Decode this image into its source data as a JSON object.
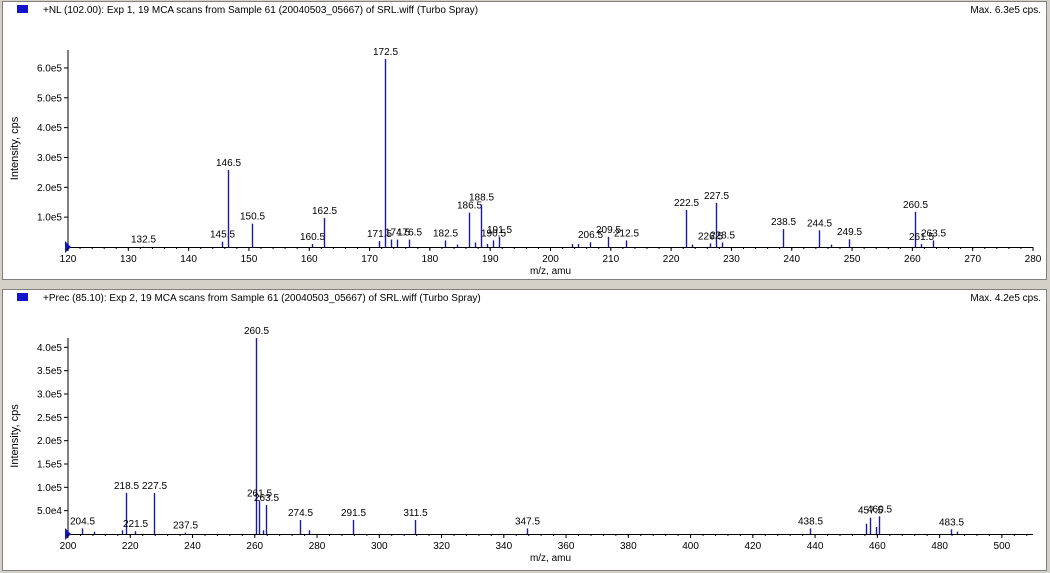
{
  "chart_data": [
    {
      "type": "bar",
      "header": "+NL (102.00): Exp 1, 19 MCA scans from Sample 61 (20040503_05667) of SRL.wiff (Turbo Spray)",
      "max_label": "Max. 6.3e5 cps.",
      "xlabel": "m/z, amu",
      "ylabel": "Intensity, cps",
      "xlim": [
        120,
        280
      ],
      "ylim": [
        0,
        630000
      ],
      "xticks": [
        120,
        130,
        140,
        150,
        160,
        170,
        180,
        190,
        200,
        210,
        220,
        230,
        240,
        250,
        260,
        270,
        280
      ],
      "yticks": [
        {
          "value": 100000,
          "label": "1.0e5"
        },
        {
          "value": 200000,
          "label": "2.0e5"
        },
        {
          "value": 300000,
          "label": "3.0e5"
        },
        {
          "value": 400000,
          "label": "4.0e5"
        },
        {
          "value": 500000,
          "label": "5.0e5"
        },
        {
          "value": 600000,
          "label": "6.0e5"
        }
      ],
      "peaks": [
        {
          "x": 132.5,
          "y": 1000,
          "label": "132.5"
        },
        {
          "x": 145.5,
          "y": 18000,
          "label": "145.5"
        },
        {
          "x": 146.5,
          "y": 258000,
          "label": "146.5"
        },
        {
          "x": 150.5,
          "y": 78000,
          "label": "150.5"
        },
        {
          "x": 160.5,
          "y": 10000,
          "label": "160.5"
        },
        {
          "x": 162.5,
          "y": 97000,
          "label": "162.5"
        },
        {
          "x": 171.5,
          "y": 20000,
          "label": "171.5"
        },
        {
          "x": 172.5,
          "y": 630000,
          "label": "172.5"
        },
        {
          "x": 173.5,
          "y": 25000
        },
        {
          "x": 174.5,
          "y": 25000,
          "label": "174.5"
        },
        {
          "x": 176.5,
          "y": 25000,
          "label": "176.5"
        },
        {
          "x": 182.5,
          "y": 22000,
          "label": "182.5"
        },
        {
          "x": 184.5,
          "y": 8000
        },
        {
          "x": 186.5,
          "y": 115000,
          "label": "186.5"
        },
        {
          "x": 187.5,
          "y": 15000
        },
        {
          "x": 188.5,
          "y": 142000,
          "label": "188.5"
        },
        {
          "x": 189.5,
          "y": 10000
        },
        {
          "x": 190.5,
          "y": 22000,
          "label": "190.5"
        },
        {
          "x": 191.5,
          "y": 34000,
          "label": "191.5"
        },
        {
          "x": 203.5,
          "y": 10000
        },
        {
          "x": 204.5,
          "y": 10000
        },
        {
          "x": 206.5,
          "y": 16000,
          "label": "206.5"
        },
        {
          "x": 209.5,
          "y": 34000,
          "label": "209.5"
        },
        {
          "x": 212.5,
          "y": 22000,
          "label": "212.5"
        },
        {
          "x": 222.5,
          "y": 124000,
          "label": "222.5"
        },
        {
          "x": 223.5,
          "y": 8000
        },
        {
          "x": 226.5,
          "y": 12000,
          "label": "226.5"
        },
        {
          "x": 227.5,
          "y": 148000,
          "label": "227.5"
        },
        {
          "x": 228.5,
          "y": 15000,
          "label": "228.5"
        },
        {
          "x": 238.5,
          "y": 60000,
          "label": "238.5"
        },
        {
          "x": 244.5,
          "y": 56000,
          "label": "244.5"
        },
        {
          "x": 246.5,
          "y": 8000
        },
        {
          "x": 249.5,
          "y": 26000,
          "label": "249.5"
        },
        {
          "x": 260.5,
          "y": 118000,
          "label": "260.5"
        },
        {
          "x": 261.5,
          "y": 10000,
          "label": "261.5"
        },
        {
          "x": 263.5,
          "y": 22000,
          "label": "263.5"
        }
      ]
    },
    {
      "type": "bar",
      "header": "+Prec (85.10): Exp 2, 19 MCA scans from Sample 61 (20040503_05667) of SRL.wiff (Turbo Spray)",
      "max_label": "Max. 4.2e5 cps.",
      "xlabel": "m/z, amu",
      "ylabel": "Intensity, cps",
      "xlim": [
        200,
        510
      ],
      "ylim": [
        0,
        420000
      ],
      "xticks": [
        200,
        220,
        240,
        260,
        280,
        300,
        320,
        340,
        360,
        380,
        400,
        420,
        440,
        460,
        480,
        500
      ],
      "yticks": [
        {
          "value": 50000,
          "label": "5.0e4"
        },
        {
          "value": 100000,
          "label": "1.0e5"
        },
        {
          "value": 150000,
          "label": "1.5e5"
        },
        {
          "value": 200000,
          "label": "2.0e5"
        },
        {
          "value": 250000,
          "label": "2.5e5"
        },
        {
          "value": 300000,
          "label": "3.0e5"
        },
        {
          "value": 350000,
          "label": "3.5e5"
        },
        {
          "value": 400000,
          "label": "4.0e5"
        }
      ],
      "peaks": [
        {
          "x": 204.5,
          "y": 12000,
          "label": "204.5"
        },
        {
          "x": 208.5,
          "y": 5000
        },
        {
          "x": 217.5,
          "y": 8000
        },
        {
          "x": 218.5,
          "y": 88000,
          "label": "218.5"
        },
        {
          "x": 221.5,
          "y": 6000,
          "label": "221.5"
        },
        {
          "x": 227.5,
          "y": 88000,
          "label": "227.5"
        },
        {
          "x": 237.5,
          "y": 3000,
          "label": "237.5"
        },
        {
          "x": 260.5,
          "y": 420000,
          "label": "260.5"
        },
        {
          "x": 261.5,
          "y": 72000,
          "label": "261.5"
        },
        {
          "x": 262.5,
          "y": 8000
        },
        {
          "x": 263.5,
          "y": 62000,
          "label": "263.5"
        },
        {
          "x": 274.5,
          "y": 30000,
          "label": "274.5"
        },
        {
          "x": 277.5,
          "y": 8000
        },
        {
          "x": 291.5,
          "y": 30000,
          "label": "291.5"
        },
        {
          "x": 311.5,
          "y": 30000,
          "label": "311.5"
        },
        {
          "x": 347.5,
          "y": 12000,
          "label": "347.5"
        },
        {
          "x": 438.5,
          "y": 12000,
          "label": "438.5"
        },
        {
          "x": 456.5,
          "y": 22000
        },
        {
          "x": 457.5,
          "y": 35000,
          "label": "457.5"
        },
        {
          "x": 459.5,
          "y": 15000
        },
        {
          "x": 460.5,
          "y": 38000,
          "label": "460.5"
        },
        {
          "x": 483.5,
          "y": 10000,
          "label": "483.5"
        },
        {
          "x": 485.5,
          "y": 5000
        }
      ]
    }
  ]
}
